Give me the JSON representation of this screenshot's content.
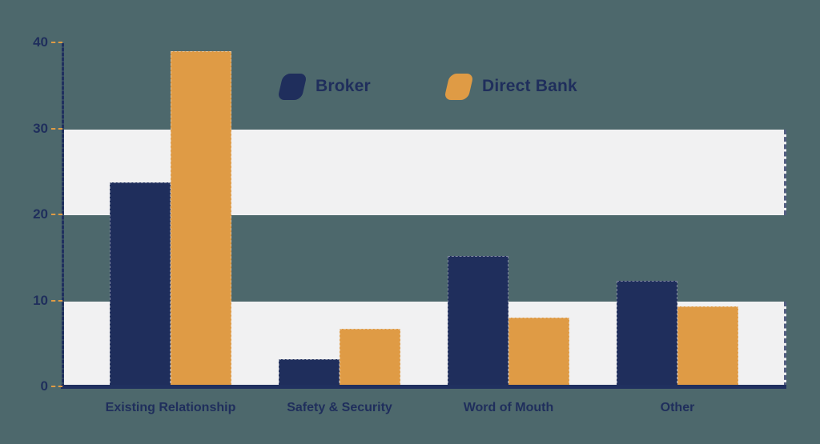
{
  "chart_data": {
    "type": "bar",
    "title": "",
    "categories": [
      "Existing Relationship",
      "Safety & Security",
      "Word of Mouth",
      "Other"
    ],
    "series": [
      {
        "name": "Broker",
        "color": "#1f2e5c",
        "values": [
          23.8,
          3.3,
          15.3,
          12.4
        ]
      },
      {
        "name": "Direct Bank",
        "color": "#df9b45",
        "values": [
          39.1,
          6.8,
          8.1,
          9.4
        ]
      }
    ],
    "xlabel": "",
    "ylabel": "",
    "ylim": [
      0,
      40
    ],
    "yticks": [
      "0",
      "10",
      "20",
      "30",
      "40"
    ],
    "grid": "horizontal-bands",
    "bands": [
      [
        0,
        10
      ],
      [
        20,
        30
      ]
    ],
    "legend_position": "top-center"
  },
  "colors": {
    "background": "#4d686c",
    "band": "#f1f1f2",
    "axis": "#20305f",
    "tick": "#df9b45",
    "text": "#1f2e5c",
    "broker": "#1f2e5c",
    "direct_bank": "#df9b45"
  }
}
